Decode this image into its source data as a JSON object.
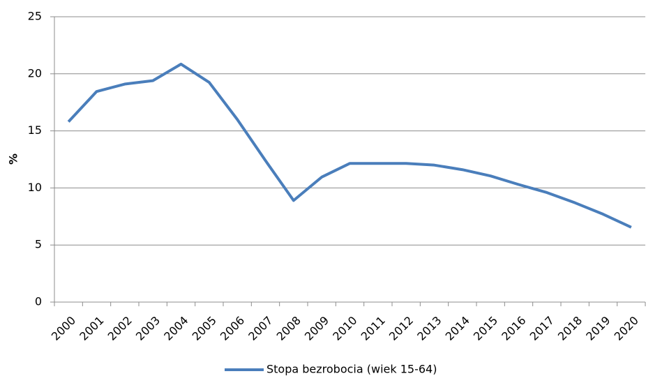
{
  "chart_data": {
    "type": "line",
    "y_label": "%",
    "categories": [
      "2000",
      "2001",
      "2002",
      "2003",
      "2004",
      "2005",
      "2006",
      "2007",
      "2008",
      "2009",
      "2010",
      "2011",
      "2012",
      "2013",
      "2014",
      "2015",
      "2016",
      "2017",
      "2018",
      "2019",
      "2020"
    ],
    "series": [
      {
        "name": "Stopa bezrobocia (wiek 15-64)",
        "color": "#4a7ebb",
        "values": [
          15.8,
          18.45,
          19.1,
          19.4,
          20.85,
          19.25,
          16.0,
          12.4,
          8.9,
          10.95,
          12.15,
          12.15,
          12.15,
          12.0,
          11.6,
          11.05,
          10.3,
          9.6,
          8.7,
          7.7,
          6.55
        ]
      }
    ],
    "ylim": [
      0,
      25
    ],
    "yticks": [
      0,
      5,
      10,
      15,
      20,
      25
    ],
    "grid": true,
    "legend": "bottom"
  }
}
